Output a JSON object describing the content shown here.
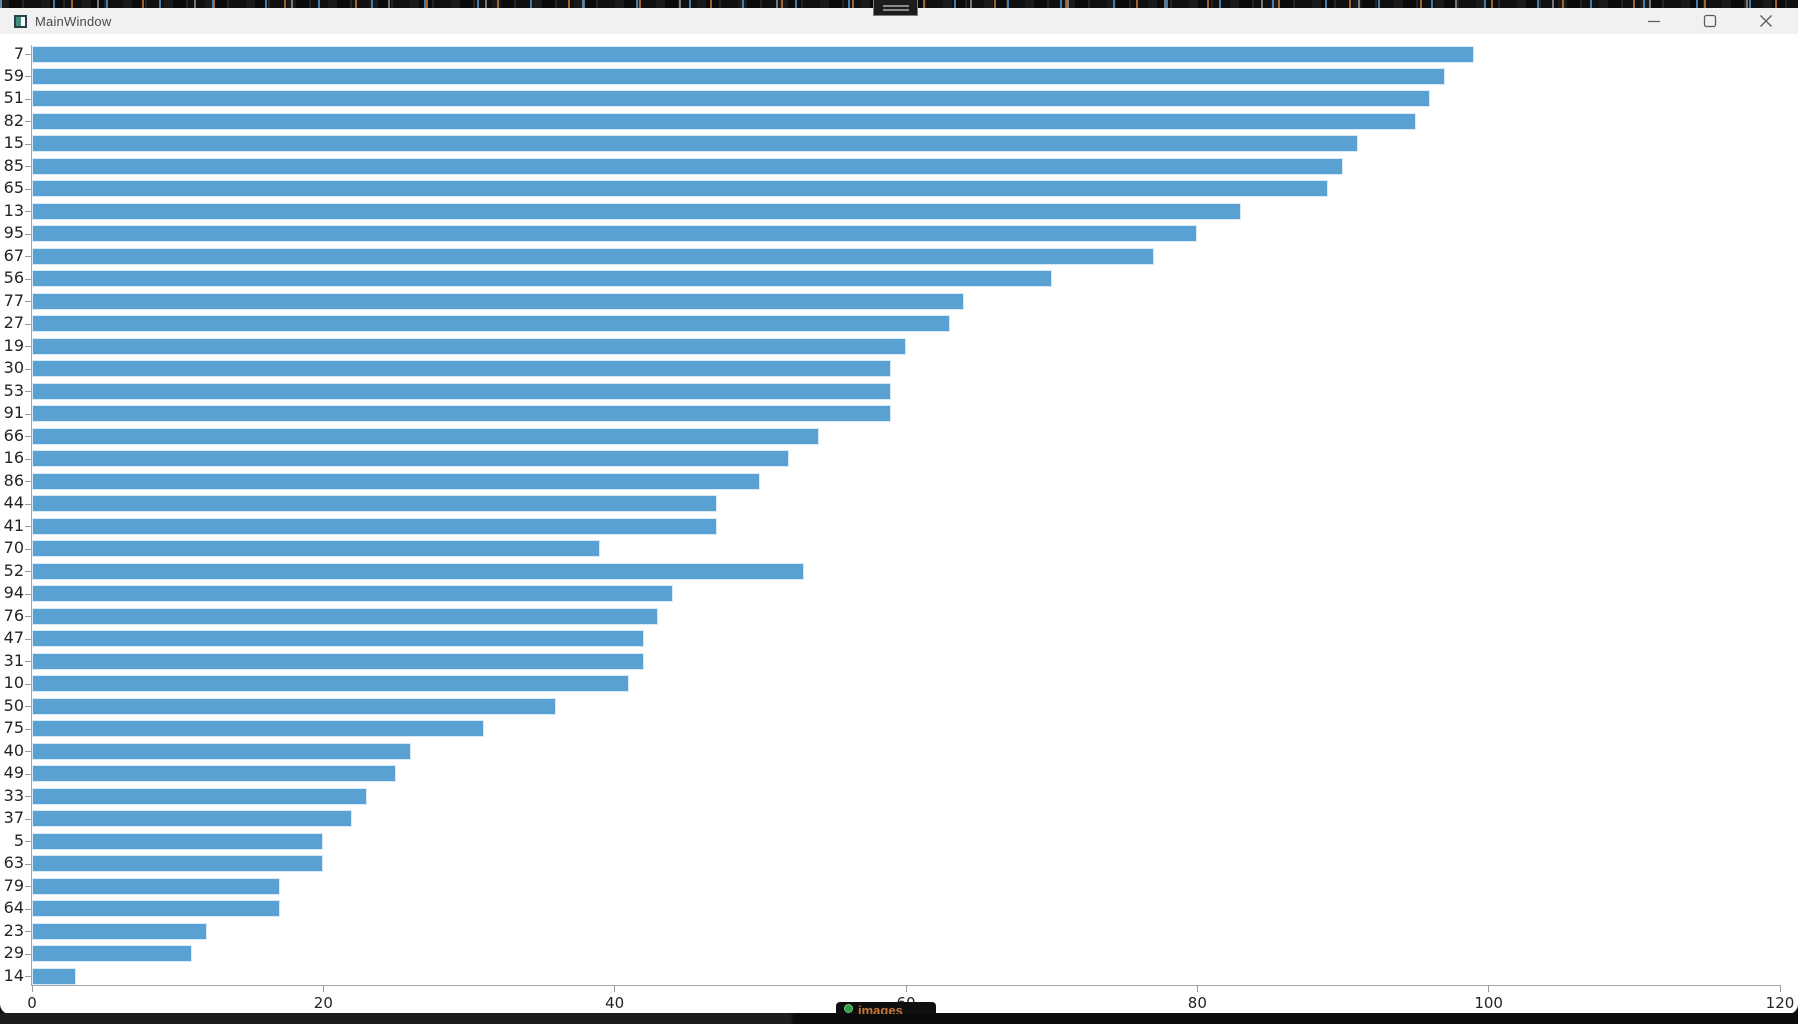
{
  "window": {
    "title": "MainWindow"
  },
  "background": {
    "taskbar_fragment_label": "images"
  },
  "chart_data": {
    "type": "bar",
    "orientation": "horizontal",
    "title": "",
    "xlabel": "",
    "ylabel": "",
    "xlim": [
      0,
      120
    ],
    "x_ticks": [
      0,
      20,
      40,
      60,
      80,
      100,
      120
    ],
    "grid": false,
    "legend_position": "none",
    "bar_color": "#5aa1d3",
    "categories": [
      "7",
      "59",
      "51",
      "82",
      "15",
      "85",
      "65",
      "13",
      "95",
      "67",
      "56",
      "77",
      "27",
      "19",
      "30",
      "53",
      "91",
      "66",
      "16",
      "86",
      "44",
      "41",
      "70",
      "52",
      "94",
      "76",
      "47",
      "31",
      "10",
      "50",
      "75",
      "40",
      "49",
      "33",
      "37",
      "5",
      "63",
      "79",
      "64",
      "23",
      "29",
      "14"
    ],
    "values": [
      99,
      97,
      96,
      95,
      91,
      90,
      89,
      83,
      80,
      77,
      70,
      64,
      63,
      60,
      59,
      59,
      59,
      54,
      52,
      50,
      47,
      47,
      39,
      53,
      44,
      43,
      42,
      42,
      41,
      36,
      31,
      26,
      25,
      23,
      22,
      20,
      20,
      17,
      17,
      12,
      11,
      3
    ]
  }
}
